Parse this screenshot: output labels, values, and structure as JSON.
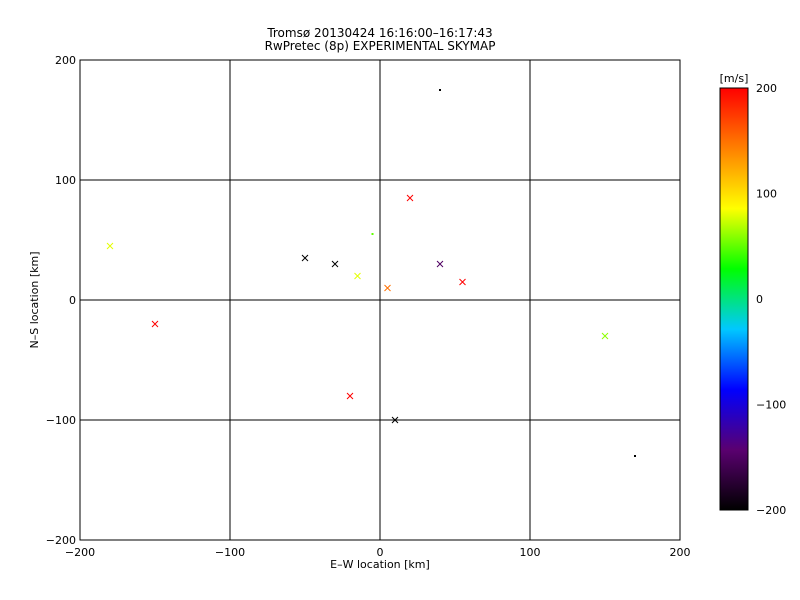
{
  "chart_data": {
    "type": "scatter",
    "title_line1": "Tromsø 20130424 16:16:00–16:17:43",
    "title_line2": "RwPretec (8p) EXPERIMENTAL SKYMAP",
    "xlabel": "E–W location [km]",
    "ylabel": "N–S location [km]",
    "xlim": [
      -200,
      200
    ],
    "ylim": [
      -200,
      200
    ],
    "xticks": [
      -200,
      -100,
      0,
      100,
      200
    ],
    "yticks": [
      -200,
      -100,
      0,
      100,
      200
    ],
    "xtick_labels": [
      "−200",
      "−100",
      "0",
      "100",
      "200"
    ],
    "ytick_labels": [
      "−200",
      "−100",
      "0",
      "100",
      "200"
    ],
    "grid": true,
    "colorbar": {
      "label": "[m/s]",
      "range": [
        -200,
        200
      ],
      "ticks": [
        200,
        100,
        0,
        -100,
        -200
      ],
      "tick_labels": [
        "200",
        "100",
        "0",
        "−100",
        "−200"
      ],
      "colors": [
        "#000000",
        "#5a0070",
        "#0000ff",
        "#00c8ff",
        "#00ff00",
        "#ffff00",
        "#ff8000",
        "#ff0000"
      ]
    },
    "markers": [
      "dot",
      "cross"
    ],
    "points": [
      {
        "x": -15,
        "y": 20,
        "v": 80,
        "m": "x"
      },
      {
        "x": 5,
        "y": 10,
        "v": 150,
        "m": "x"
      },
      {
        "x": -50,
        "y": 35,
        "v": -200,
        "m": "x"
      },
      {
        "x": -30,
        "y": 30,
        "v": -200,
        "m": "x"
      },
      {
        "x": 40,
        "y": 30,
        "v": -150,
        "m": "x"
      },
      {
        "x": 55,
        "y": 15,
        "v": 200,
        "m": "x"
      },
      {
        "x": -20,
        "y": -80,
        "v": 200,
        "m": "x"
      },
      {
        "x": -150,
        "y": -20,
        "v": 200,
        "m": "x"
      },
      {
        "x": 150,
        "y": -30,
        "v": 60,
        "m": "x"
      },
      {
        "x": 170,
        "y": -130,
        "v": -200,
        "m": "."
      },
      {
        "x": 40,
        "y": 175,
        "v": -200,
        "m": "."
      },
      {
        "x": -180,
        "y": 45,
        "v": 80,
        "m": "x"
      },
      {
        "x": 10,
        "y": -100,
        "v": -200,
        "m": "x"
      },
      {
        "x": -5,
        "y": 55,
        "v": 50,
        "m": "."
      },
      {
        "x": 20,
        "y": 85,
        "v": 200,
        "m": "x"
      }
    ]
  }
}
